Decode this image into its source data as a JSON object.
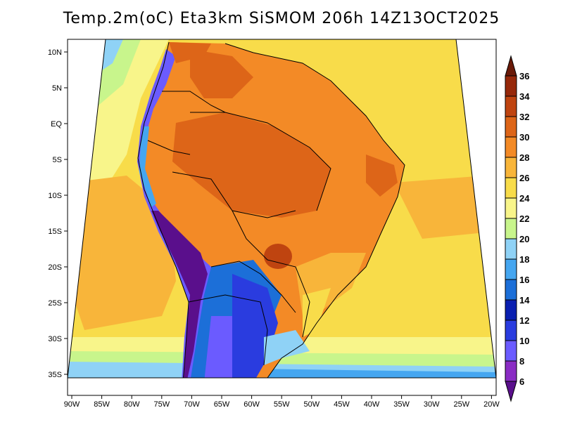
{
  "title": "Temp.2m(oC) Eta3km SiSMOM 206h 14Z13OCT2025",
  "lat_ticks": [
    "10N",
    "5N",
    "EQ",
    "5S",
    "10S",
    "15S",
    "20S",
    "25S",
    "30S",
    "35S"
  ],
  "lon_ticks": [
    "90W",
    "85W",
    "80W",
    "75W",
    "70W",
    "65W",
    "60W",
    "55W",
    "50W",
    "45W",
    "40W",
    "35W",
    "30W",
    "25W",
    "20W"
  ],
  "colorbar": {
    "labels": [
      "6",
      "8",
      "10",
      "12",
      "14",
      "16",
      "18",
      "20",
      "22",
      "24",
      "26",
      "28",
      "30",
      "32",
      "34",
      "36"
    ],
    "colors": [
      "#5a0f8c",
      "#8a2cc4",
      "#6b5bff",
      "#2a3cdf",
      "#0a1fb0",
      "#1c6fd8",
      "#45a6f0",
      "#8fd2f6",
      "#c8f58c",
      "#f8f58a",
      "#f8dc4a",
      "#f8b53a",
      "#f38a26",
      "#dd6518",
      "#bf4410",
      "#96280a",
      "#6a1a08"
    ],
    "labels_shown": [
      "36",
      "34",
      "32",
      "30",
      "28",
      "26",
      "24",
      "22",
      "20",
      "18",
      "16",
      "14",
      "12",
      "10",
      "8",
      "6"
    ]
  }
}
